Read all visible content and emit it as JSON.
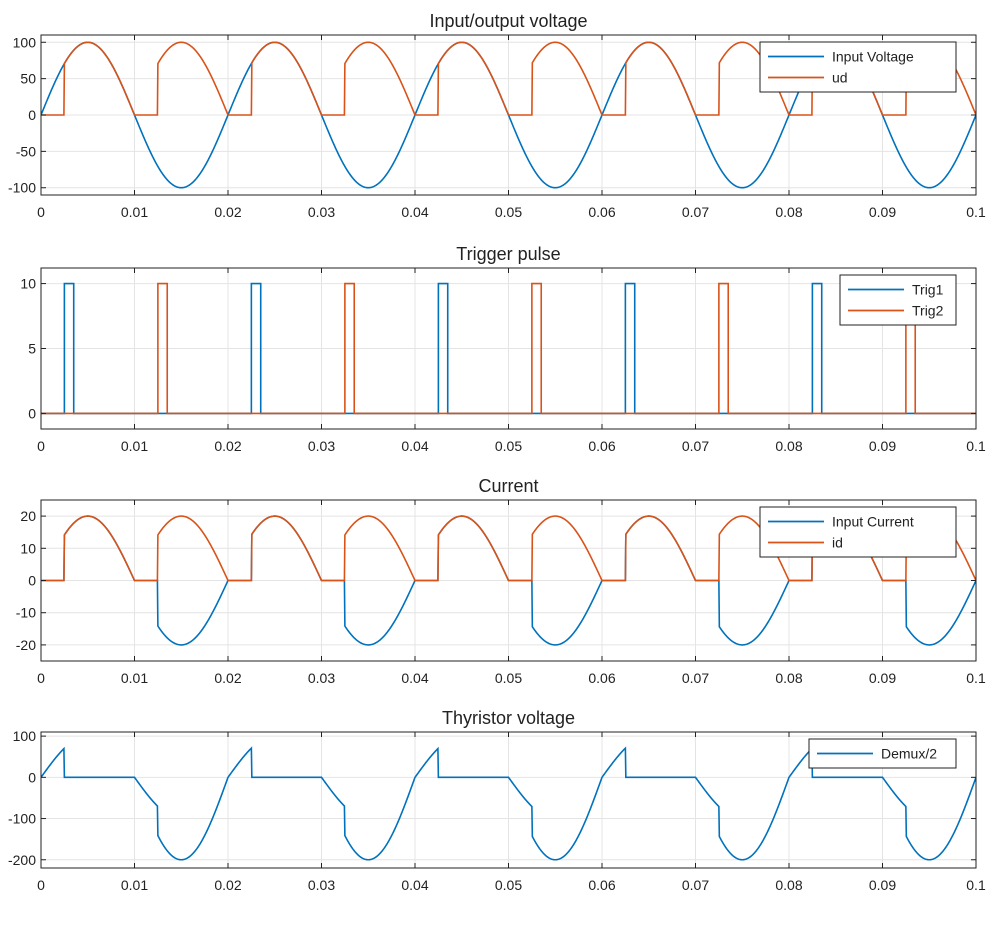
{
  "figure": {
    "name": "thyristor-rectifier-scope"
  },
  "colors": {
    "blue": "#0072BD",
    "orange": "#D95319",
    "grid": "#e4e4e4",
    "axis": "#222222"
  },
  "chart_data": [
    {
      "type": "line",
      "title": "Input/output voltage",
      "xlim": [
        0,
        0.1
      ],
      "ylim": [
        -110,
        110
      ],
      "xticks": [
        0,
        0.01,
        0.02,
        0.03,
        0.04,
        0.05,
        0.06,
        0.07,
        0.08,
        0.09,
        0.1
      ],
      "xticklabels": [
        "0",
        "0.01",
        "0.02",
        "0.03",
        "0.04",
        "0.05",
        "0.06",
        "0.07",
        "0.08",
        "0.09",
        "0.1"
      ],
      "yticks": [
        -100,
        -50,
        0,
        50,
        100
      ],
      "yticklabels": [
        "-100",
        "-50",
        "0",
        "50",
        "100"
      ],
      "legend": [
        "Input Voltage",
        "ud"
      ],
      "legend_position": "top-right",
      "series": [
        {
          "name": "Input Voltage",
          "color": "#0072BD",
          "function": "sine",
          "amplitude": 100,
          "period": 0.02,
          "firing_delay": 0.0025
        },
        {
          "name": "ud",
          "color": "#D95319",
          "function": "rectified",
          "amplitude": 100,
          "period": 0.02,
          "firing_delay": 0.0025
        }
      ]
    },
    {
      "type": "line",
      "title": "Trigger pulse",
      "xlim": [
        0,
        0.1
      ],
      "ylim": [
        -1.2,
        11.2
      ],
      "xticks": [
        0,
        0.01,
        0.02,
        0.03,
        0.04,
        0.05,
        0.06,
        0.07,
        0.08,
        0.09,
        0.1
      ],
      "xticklabels": [
        "0",
        "0.01",
        "0.02",
        "0.03",
        "0.04",
        "0.05",
        "0.06",
        "0.07",
        "0.08",
        "0.09",
        "0.1"
      ],
      "yticks": [
        0,
        5,
        10
      ],
      "yticklabels": [
        "0",
        "5",
        "10"
      ],
      "legend": [
        "Trig1",
        "Trig2"
      ],
      "legend_position": "top-right",
      "series": [
        {
          "name": "Trig1",
          "color": "#0072BD",
          "function": "pulse",
          "amplitude": 10,
          "starts": [
            0.0025,
            0.0225,
            0.0425,
            0.0625,
            0.0825
          ],
          "width": 0.001
        },
        {
          "name": "Trig2",
          "color": "#D95319",
          "function": "pulse",
          "amplitude": 10,
          "starts": [
            0.0125,
            0.0325,
            0.0525,
            0.0725,
            0.0925
          ],
          "width": 0.001
        }
      ]
    },
    {
      "type": "line",
      "title": "Current",
      "xlim": [
        0,
        0.1
      ],
      "ylim": [
        -25,
        25
      ],
      "xticks": [
        0,
        0.01,
        0.02,
        0.03,
        0.04,
        0.05,
        0.06,
        0.07,
        0.08,
        0.09,
        0.1
      ],
      "xticklabels": [
        "0",
        "0.01",
        "0.02",
        "0.03",
        "0.04",
        "0.05",
        "0.06",
        "0.07",
        "0.08",
        "0.09",
        "0.1"
      ],
      "yticks": [
        -20,
        -10,
        0,
        10,
        20
      ],
      "yticklabels": [
        "-20",
        "-10",
        "0",
        "10",
        "20"
      ],
      "legend": [
        "Input Current",
        "id"
      ],
      "legend_position": "top-right",
      "series": [
        {
          "name": "Input Current",
          "color": "#0072BD",
          "function": "signed-rectified",
          "amplitude": 20,
          "period": 0.02,
          "firing_delay": 0.0025
        },
        {
          "name": "id",
          "color": "#D95319",
          "function": "rectified",
          "amplitude": 20,
          "period": 0.02,
          "firing_delay": 0.0025
        }
      ]
    },
    {
      "type": "line",
      "title": "Thyristor voltage",
      "xlim": [
        0,
        0.1
      ],
      "ylim": [
        -220,
        110
      ],
      "xticks": [
        0,
        0.01,
        0.02,
        0.03,
        0.04,
        0.05,
        0.06,
        0.07,
        0.08,
        0.09,
        0.1
      ],
      "xticklabels": [
        "0",
        "0.01",
        "0.02",
        "0.03",
        "0.04",
        "0.05",
        "0.06",
        "0.07",
        "0.08",
        "0.09",
        "0.1"
      ],
      "yticks": [
        -200,
        -100,
        0,
        100
      ],
      "yticklabels": [
        "-200",
        "-100",
        "0",
        "100"
      ],
      "legend": [
        "Demux/2"
      ],
      "legend_position": "top-right",
      "series": [
        {
          "name": "Demux/2",
          "color": "#0072BD",
          "function": "thyristor",
          "amplitude": 100,
          "period": 0.02,
          "firing_delay": 0.0025
        }
      ]
    }
  ]
}
